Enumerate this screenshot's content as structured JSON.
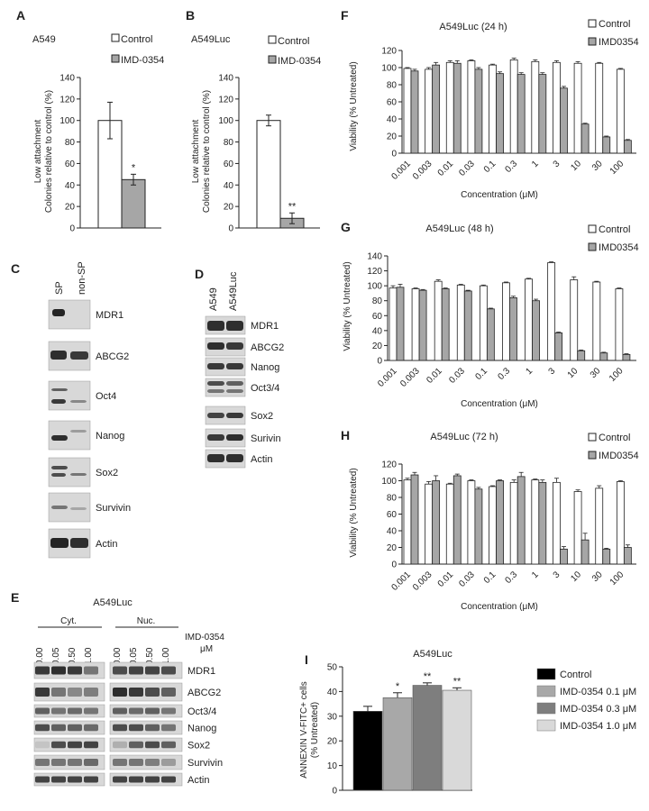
{
  "panels": {
    "A": {
      "letter": "A",
      "title": "A549",
      "ylabel_1": "Low attachment",
      "ylabel_2": "Colonies relative to control (%)",
      "sig": "*"
    },
    "B": {
      "letter": "B",
      "title": "A549Luc",
      "ylabel_1": "Low attachment",
      "ylabel_2": "Colonies  relative to control (%)",
      "sig": "**"
    },
    "C": {
      "letter": "C",
      "lanes": [
        "SP",
        "non-SP"
      ],
      "blots": [
        "MDR1",
        "ABCG2",
        "Oct4",
        "Nanog",
        "Sox2",
        "Survivin",
        "Actin"
      ]
    },
    "D": {
      "letter": "D",
      "lanes": [
        "A549",
        "A549Luc"
      ],
      "blots": [
        "MDR1",
        "ABCG2",
        "Nanog",
        "Oct3/4",
        "Sox2",
        "Surivin",
        "Actin"
      ]
    },
    "E": {
      "letter": "E",
      "title": "A549Luc",
      "group1": "Cyt.",
      "group2": "Nuc.",
      "treatment_1": "IMD-0354",
      "treatment_2": "μM",
      "lanes": [
        "0.00",
        "0.05",
        "0.50",
        "1.00",
        "0.00",
        "0.05",
        "0.50",
        "1.00"
      ],
      "blots": [
        "MDR1",
        "ABCG2",
        "Oct3/4",
        "Nanog",
        "Sox2",
        "Survivin",
        "Actin"
      ]
    },
    "F": {
      "letter": "F",
      "title": "A549Luc (24 h)"
    },
    "G": {
      "letter": "G",
      "title": "A549Luc (48 h)"
    },
    "H": {
      "letter": "H",
      "title": "A549Luc (72 h)"
    },
    "I": {
      "letter": "I",
      "title": "A549Luc",
      "ylabel_1": "ANNEXIN V-FITC+ cells",
      "ylabel_2": "(% Untreated)"
    }
  },
  "viability_axis": {
    "ylabel": "Viability (% Untreated)",
    "xlabel": "Concentration (μM)"
  },
  "colors": {
    "control": "#ffffff",
    "imd": "#a6a6a6",
    "outline": "#222222"
  },
  "chart_data": [
    {
      "panel": "A",
      "type": "bar",
      "categories": [
        "Control",
        "IMD-0354"
      ],
      "values": [
        100,
        45
      ],
      "errors": [
        17,
        5
      ],
      "legend": [
        "Control",
        "IMD-0354"
      ],
      "ylim": [
        0,
        140
      ],
      "yticks": [
        0,
        20,
        40,
        60,
        80,
        100,
        120,
        140
      ],
      "ylabel": "Low attachment Colonies relative to control (%)"
    },
    {
      "panel": "B",
      "type": "bar",
      "categories": [
        "Control",
        "IMD-0354"
      ],
      "values": [
        100,
        9
      ],
      "errors": [
        5,
        5
      ],
      "legend": [
        "Control",
        "IMD-0354"
      ],
      "ylim": [
        0,
        140
      ],
      "yticks": [
        0,
        20,
        40,
        60,
        80,
        100,
        120,
        140
      ],
      "ylabel": "Low attachment Colonies  relative to control (%)"
    },
    {
      "panel": "F",
      "type": "bar",
      "categories": [
        "0.001",
        "0.003",
        "0.01",
        "0.03",
        "0.1",
        "0.3",
        "1",
        "3",
        "10",
        "30",
        "100"
      ],
      "series": [
        {
          "name": "Control",
          "values": [
            99,
            98,
            106,
            108,
            103,
            109,
            107,
            106,
            105,
            105,
            98
          ],
          "errors": [
            1,
            2,
            2,
            1,
            1,
            2,
            2,
            2,
            2,
            1,
            1
          ]
        },
        {
          "name": "IMD0354",
          "values": [
            96,
            103,
            105,
            98,
            93,
            92,
            92,
            76,
            34,
            19,
            15
          ],
          "errors": [
            2,
            3,
            3,
            2,
            2,
            2,
            2,
            2,
            1,
            1,
            1
          ]
        }
      ],
      "ylim": [
        0,
        120
      ],
      "yticks": [
        0,
        20,
        40,
        60,
        80,
        100,
        120
      ],
      "ylabel": "Viability (% Untreated)",
      "xlabel": "Concentration (μM)"
    },
    {
      "panel": "G",
      "type": "bar",
      "categories": [
        "0.001",
        "0.003",
        "0.01",
        "0.03",
        "0.1",
        "0.3",
        "1",
        "3",
        "10",
        "30",
        "100"
      ],
      "series": [
        {
          "name": "Control",
          "values": [
            97,
            96,
            106,
            101,
            100,
            104,
            109,
            131,
            108,
            105,
            96
          ],
          "errors": [
            3,
            1,
            2,
            1,
            1,
            1,
            1,
            1,
            4,
            1,
            1
          ]
        },
        {
          "name": "IMD0354",
          "values": [
            98,
            94,
            96,
            93,
            69,
            84,
            80,
            37,
            13,
            10,
            8
          ],
          "errors": [
            4,
            1,
            1,
            1,
            1,
            2,
            2,
            1,
            1,
            1,
            1
          ]
        }
      ],
      "ylim": [
        0,
        140
      ],
      "yticks": [
        0,
        20,
        40,
        60,
        80,
        100,
        120,
        140
      ],
      "ylabel": "Viability (% Untreated)",
      "xlabel": "Concentration (μM)"
    },
    {
      "panel": "H",
      "type": "bar",
      "categories": [
        "0.001",
        "0.003",
        "0.01",
        "0.03",
        "0.1",
        "0.3",
        "1",
        "3",
        "10",
        "30",
        "100"
      ],
      "series": [
        {
          "name": "Control",
          "values": [
            101,
            96,
            96,
            100,
            93,
            98,
            101,
            98,
            87,
            91,
            99
          ],
          "errors": [
            2,
            3,
            1,
            1,
            1,
            3,
            1,
            5,
            2,
            3,
            1
          ]
        },
        {
          "name": "IMD0354",
          "values": [
            107,
            100,
            106,
            90,
            100,
            105,
            98,
            18,
            29,
            18,
            20
          ],
          "errors": [
            3,
            6,
            2,
            2,
            1,
            5,
            3,
            3,
            8,
            1,
            3
          ]
        }
      ],
      "ylim": [
        0,
        120
      ],
      "yticks": [
        0,
        20,
        40,
        60,
        80,
        100,
        120
      ],
      "ylabel": "Viability (% Untreated)",
      "xlabel": "Concentration (μM)"
    },
    {
      "panel": "I",
      "type": "bar",
      "categories": [
        "Control",
        "IMD-0354 0.1 μM",
        "IMD-0354 0.3 μM",
        "IMD-0354 1.0 μM"
      ],
      "values": [
        32,
        37.5,
        42.5,
        40.5
      ],
      "errors": [
        2,
        2,
        1,
        1
      ],
      "sig": [
        "",
        "*",
        "**",
        "**"
      ],
      "colors": [
        "#000000",
        "#a8a8a8",
        "#7e7e7e",
        "#d9d9d9"
      ],
      "ylim": [
        0,
        50
      ],
      "yticks": [
        0,
        10,
        20,
        30,
        40,
        50
      ],
      "ylabel": "ANNEXIN V-FITC+ cells (% Untreated)"
    }
  ]
}
